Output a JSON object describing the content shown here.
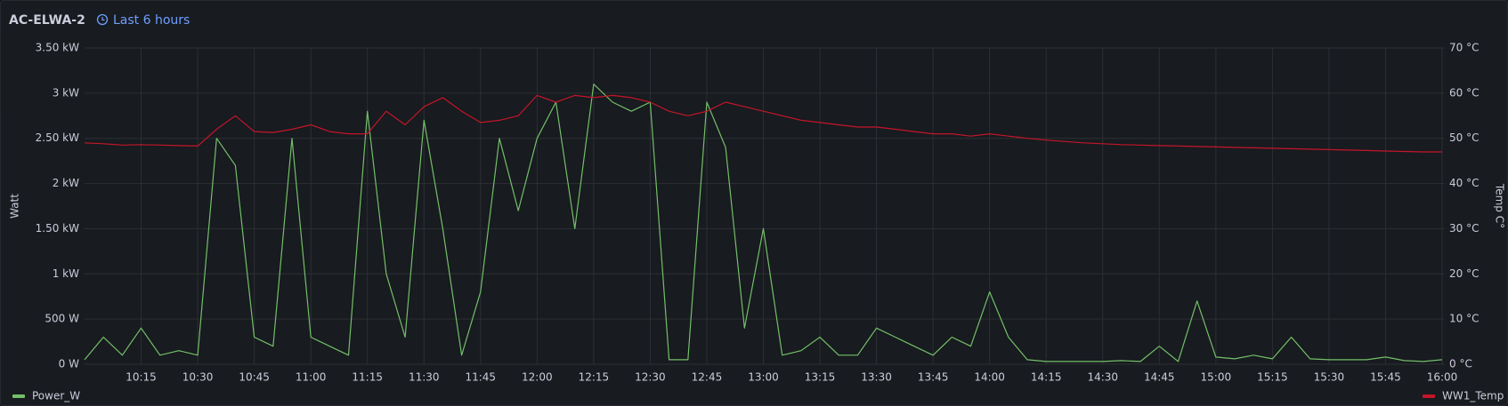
{
  "chart_data": {
    "type": "line",
    "title": "AC-ELWA-2",
    "time_range": "Last 6 hours",
    "ylabel": "Watt",
    "y2label": "Temp C°",
    "x": [
      "10:00",
      "10:05",
      "10:10",
      "10:15",
      "10:20",
      "10:25",
      "10:30",
      "10:35",
      "10:40",
      "10:45",
      "10:50",
      "10:55",
      "11:00",
      "11:05",
      "11:10",
      "11:15",
      "11:20",
      "11:25",
      "11:30",
      "11:35",
      "11:40",
      "11:45",
      "11:50",
      "11:55",
      "12:00",
      "12:05",
      "12:10",
      "12:15",
      "12:20",
      "12:25",
      "12:30",
      "12:35",
      "12:40",
      "12:45",
      "12:50",
      "12:55",
      "13:00",
      "13:05",
      "13:10",
      "13:15",
      "13:20",
      "13:25",
      "13:30",
      "13:35",
      "13:40",
      "13:45",
      "13:50",
      "13:55",
      "14:00",
      "14:05",
      "14:10",
      "14:15",
      "14:20",
      "14:25",
      "14:30",
      "14:35",
      "14:40",
      "14:45",
      "14:50",
      "14:55",
      "15:00",
      "15:05",
      "15:10",
      "15:15",
      "15:20",
      "15:25",
      "15:30",
      "15:35",
      "15:40",
      "15:45",
      "15:50",
      "15:55",
      "16:00"
    ],
    "xlim": [
      "10:00",
      "16:00"
    ],
    "xticks": [
      "10:15",
      "10:30",
      "10:45",
      "11:00",
      "11:15",
      "11:30",
      "11:45",
      "12:00",
      "12:15",
      "12:30",
      "12:45",
      "13:00",
      "13:15",
      "13:30",
      "13:45",
      "14:00",
      "14:15",
      "14:30",
      "14:45",
      "15:00",
      "15:15",
      "15:30",
      "15:45",
      "16:00"
    ],
    "ylim": [
      0,
      3500
    ],
    "yticks": [
      {
        "value": 0,
        "label": "0 W"
      },
      {
        "value": 500,
        "label": "500 W"
      },
      {
        "value": 1000,
        "label": "1 kW"
      },
      {
        "value": 1500,
        "label": "1.50 kW"
      },
      {
        "value": 2000,
        "label": "2 kW"
      },
      {
        "value": 2500,
        "label": "2.50 kW"
      },
      {
        "value": 3000,
        "label": "3 kW"
      },
      {
        "value": 3500,
        "label": "3.50 kW"
      }
    ],
    "y2lim": [
      0,
      70
    ],
    "y2ticks": [
      {
        "value": 0,
        "label": "0 °C"
      },
      {
        "value": 10,
        "label": "10 °C"
      },
      {
        "value": 20,
        "label": "20 °C"
      },
      {
        "value": 30,
        "label": "30 °C"
      },
      {
        "value": 40,
        "label": "40 °C"
      },
      {
        "value": 50,
        "label": "50 °C"
      },
      {
        "value": 60,
        "label": "60 °C"
      },
      {
        "value": 70,
        "label": "70 °C"
      }
    ],
    "grid": true,
    "series": [
      {
        "name": "Power_W",
        "color": "#73bf69",
        "values": [
          50,
          300,
          100,
          400,
          100,
          150,
          100,
          2500,
          2200,
          300,
          200,
          2500,
          300,
          200,
          100,
          2800,
          1000,
          300,
          2700,
          1500,
          100,
          800,
          2500,
          1700,
          2500,
          2900,
          1500,
          3100,
          2900,
          2800,
          2900,
          50,
          50,
          2900,
          2400,
          400,
          1500,
          100,
          150,
          300,
          100,
          100,
          400,
          300,
          200,
          100,
          300,
          200,
          800,
          300,
          50,
          30,
          30,
          30,
          30,
          40,
          30,
          200,
          30,
          700,
          80,
          60,
          100,
          60,
          300,
          60,
          50,
          50,
          50,
          80,
          40,
          30,
          50
        ]
      },
      {
        "name": "WW1_Temp",
        "color": "#c4162a",
        "axis": "y2",
        "values": [
          49,
          48.8,
          48.5,
          48.6,
          48.5,
          48.4,
          48.3,
          52,
          55,
          51.5,
          51.3,
          52,
          53,
          51.5,
          51,
          51,
          56,
          53,
          57,
          59,
          56,
          53.5,
          54,
          55,
          59.5,
          58,
          59.5,
          59,
          59.5,
          59,
          58,
          56,
          55,
          56,
          58,
          57,
          56,
          55,
          54,
          53.5,
          53,
          52.5,
          52.5,
          52,
          51.5,
          51,
          51,
          50.5,
          51,
          50.5,
          50,
          49.6,
          49.3,
          49,
          48.8,
          48.6,
          48.5,
          48.4,
          48.3,
          48.2,
          48.1,
          48,
          47.9,
          47.8,
          47.7,
          47.6,
          47.5,
          47.4,
          47.3,
          47.2,
          47.1,
          47,
          47
        ]
      }
    ]
  }
}
